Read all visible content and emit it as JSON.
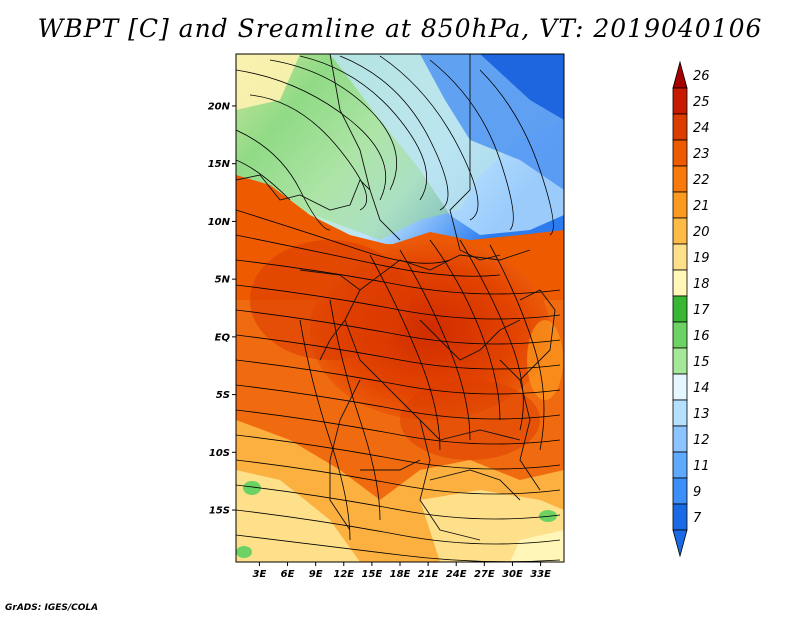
{
  "title": "WBPT [C] and Sreamline at 850hPa, VT: 2019040106",
  "credit": "GrADS: IGES/COLA",
  "map": {
    "lat_labels": [
      "20N",
      "15N",
      "10N",
      "5N",
      "EQ",
      "5S",
      "10S",
      "15S"
    ],
    "lat_values": [
      20,
      15,
      10,
      5,
      0,
      -5,
      -10,
      -15
    ],
    "lon_labels": [
      "3E",
      "6E",
      "9E",
      "12E",
      "15E",
      "18E",
      "21E",
      "24E",
      "27E",
      "30E",
      "33E"
    ],
    "lon_values": [
      3,
      6,
      9,
      12,
      15,
      18,
      21,
      24,
      27,
      30,
      33
    ],
    "lat_range": [
      -19.5,
      24.5
    ],
    "lon_range": [
      0.5,
      35.5
    ]
  },
  "colorbar": {
    "labels": [
      "26",
      "25",
      "24",
      "23",
      "22",
      "21",
      "20",
      "19",
      "18",
      "17",
      "16",
      "15",
      "14",
      "13",
      "12",
      "11",
      "9",
      "7"
    ],
    "colors": [
      "#a50000",
      "#c81a00",
      "#dc3c00",
      "#ee5a00",
      "#f77a0a",
      "#fb9a1e",
      "#fdbb47",
      "#ffe08a",
      "#fff6b8",
      "#38b734",
      "#6cd264",
      "#a6e89a",
      "#e4f6ff",
      "#b6e0ff",
      "#8cc4ff",
      "#5eaaff",
      "#3c8ef8",
      "#1a6ae6"
    ]
  }
}
